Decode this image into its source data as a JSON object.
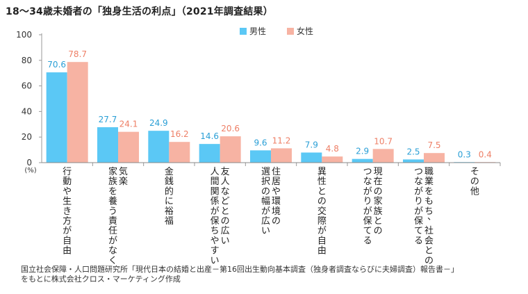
{
  "chart_data": {
    "type": "bar",
    "title": "18～34歳未婚者の「独身生活の利点」（2021年調査結果）",
    "unit": "(%)",
    "ylim": [
      0,
      100
    ],
    "yticks": [
      0,
      20,
      40,
      60,
      80,
      100
    ],
    "legend_position": "top",
    "categories": [
      [
        "行動や生き方が自由"
      ],
      [
        "気楽",
        "家族を養う責任がなく、"
      ],
      [
        "金銭的に裕福"
      ],
      [
        "友人などとの広い",
        "人間関係が保ちやすい"
      ],
      [
        "住居や環境の",
        "選択の幅が広い"
      ],
      [
        "異性との交際が自由"
      ],
      [
        "現在の家族との",
        "つながりが保てる"
      ],
      [
        "職業をもち、社会との",
        "つながりが保てる"
      ],
      [
        "その他"
      ]
    ],
    "series": [
      {
        "name": "男性",
        "color": "#5bc8f5",
        "label_color": "#2a9fd6",
        "values": [
          70.6,
          27.7,
          24.9,
          14.6,
          9.6,
          7.9,
          2.9,
          2.5,
          0.3
        ],
        "labels": [
          "70.6",
          "27.7",
          "24.9",
          "14.6",
          "9.6",
          "7.9",
          "2.9",
          "2.5",
          "0.3"
        ]
      },
      {
        "name": "女性",
        "color": "#f7b3a3",
        "label_color": "#ee7f66",
        "values": [
          78.7,
          24.1,
          16.2,
          20.6,
          11.2,
          4.8,
          10.7,
          7.5,
          0.4
        ],
        "labels": [
          "78.7",
          "24.1",
          "16.2",
          "20.6",
          "11.2",
          "4.8",
          "10.7",
          "7.5",
          "0.4"
        ]
      }
    ]
  },
  "source": {
    "line1": "国立社会保障・人口問題研究所「現代日本の結婚と出産－第16回出生動向基本調査（独身者調査ならびに夫婦調査）報告書－」",
    "line2": "をもとに株式会社クロス・マーケティング作成"
  }
}
